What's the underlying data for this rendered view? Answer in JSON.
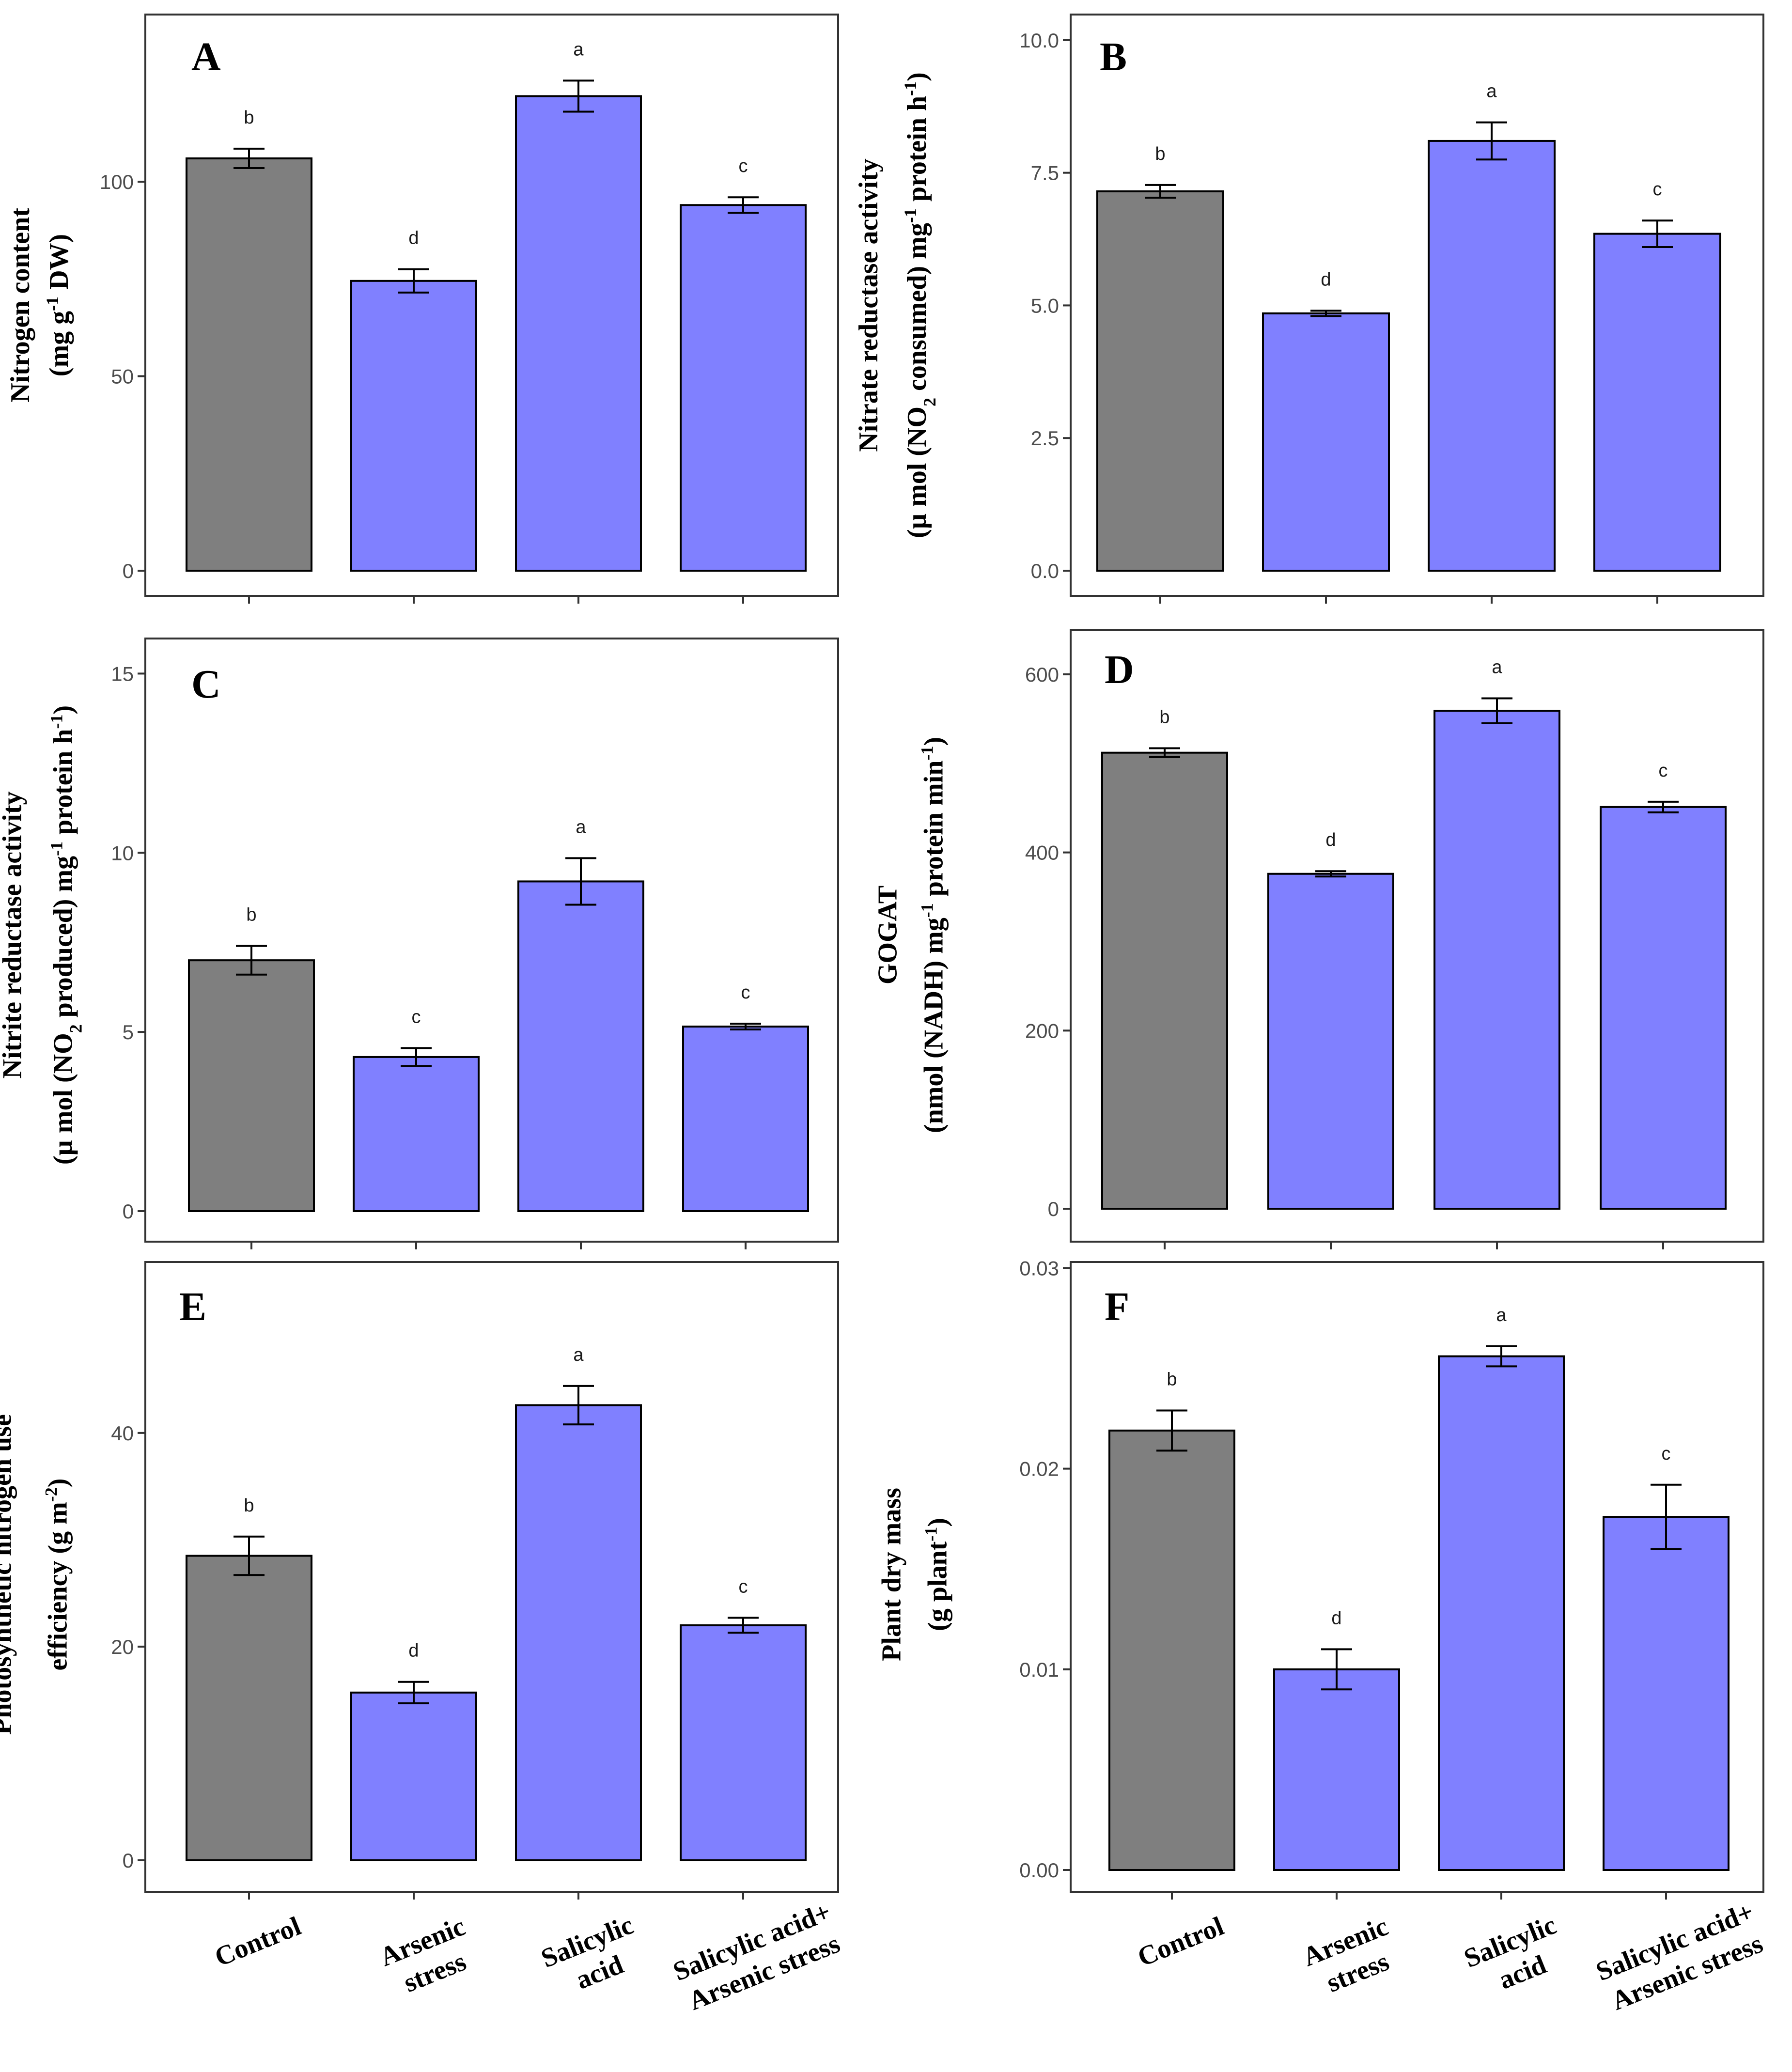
{
  "colors": {
    "control": "#7f7f7f",
    "treatment": "#8080ff"
  },
  "x_categories": [
    [
      "Control"
    ],
    [
      "Arsenic",
      "stress"
    ],
    [
      "Salicylic",
      "acid"
    ],
    [
      "Salicylic acid+",
      "Arsenic stress"
    ]
  ],
  "chart_data": [
    {
      "type": "bar",
      "panel": "A",
      "ylabel_lines": [
        [
          "Nitrogen content"
        ],
        [
          "(mg g",
          {
            "sup": "-1"
          },
          " DW)"
        ]
      ],
      "ylim": [
        0,
        137
      ],
      "yticks": [
        0,
        50,
        100
      ],
      "tick_labels": [
        "0",
        "50",
        "100"
      ],
      "values": [
        106,
        74.5,
        122,
        94
      ],
      "errors": [
        2.5,
        3,
        4,
        2
      ],
      "letters": [
        "b",
        "d",
        "a",
        "c"
      ]
    },
    {
      "type": "bar",
      "panel": "B",
      "ylabel_lines": [
        [
          "Nitrate reductase activity"
        ],
        [
          "(µ mol (NO",
          {
            "sub": "2"
          },
          " consumed) mg",
          {
            "sup": "-1"
          },
          " protein h",
          {
            "sup": "-1"
          },
          ")"
        ]
      ],
      "ylim": [
        0,
        10.3
      ],
      "yticks": [
        0,
        2.5,
        5,
        7.5,
        10
      ],
      "tick_labels": [
        "0.0",
        "2.5",
        "5.0",
        "7.5",
        "10.0"
      ],
      "values": [
        7.15,
        4.85,
        8.1,
        6.35
      ],
      "errors": [
        0.12,
        0.05,
        0.35,
        0.25
      ],
      "letters": [
        "b",
        "d",
        "a",
        "c"
      ]
    },
    {
      "type": "bar",
      "panel": "C",
      "ylabel_lines": [
        [
          "Nitrite reductase activity"
        ],
        [
          "(µ mol (NO",
          {
            "sub": "2"
          },
          " produced) mg",
          {
            "sup": "-1"
          },
          " protein h",
          {
            "sup": "-1"
          },
          ")"
        ]
      ],
      "ylim": [
        0,
        15.6
      ],
      "yticks": [
        0,
        5,
        10,
        15
      ],
      "tick_labels": [
        "0",
        "5",
        "10",
        "15"
      ],
      "values": [
        7,
        4.3,
        9.2,
        5.15
      ],
      "errors": [
        0.4,
        0.25,
        0.65,
        0.08
      ],
      "letters": [
        "b",
        "c",
        "a",
        "c"
      ]
    },
    {
      "type": "bar",
      "panel": "D",
      "ylabel_lines": [
        [
          "GOGAT"
        ],
        [
          "(nmol (NADH) mg",
          {
            "sup": "-1"
          },
          " protein min",
          {
            "sup": "-1"
          },
          ")"
        ]
      ],
      "ylim": [
        0,
        650
      ],
      "yticks": [
        0,
        200,
        400,
        600
      ],
      "tick_labels": [
        "0",
        "200",
        "400",
        "600"
      ],
      "values": [
        512,
        376,
        559,
        451
      ],
      "errors": [
        5,
        3,
        14,
        6
      ],
      "letters": [
        "b",
        "d",
        "a",
        "c"
      ]
    },
    {
      "type": "bar",
      "panel": "E",
      "ylabel_lines": [
        [
          "Photosynthetic nitrogen use"
        ],
        [
          "efficiency (g m",
          {
            "sup": "-2"
          },
          ")"
        ]
      ],
      "ylim": [
        0,
        56
      ],
      "yticks": [
        0,
        20,
        40
      ],
      "tick_labels": [
        "0",
        "20",
        "40"
      ],
      "values": [
        28.5,
        15.7,
        42.6,
        22
      ],
      "errors": [
        1.8,
        1,
        1.8,
        0.7
      ],
      "letters": [
        "b",
        "d",
        "a",
        "c"
      ]
    },
    {
      "type": "bar",
      "panel": "F",
      "ylabel_lines": [
        [
          "Plant dry mass"
        ],
        [
          "(g plant",
          {
            "sup": "-1"
          },
          ")"
        ]
      ],
      "ylim": [
        0,
        0.0303
      ],
      "yticks": [
        0,
        0.01,
        0.02,
        0.03
      ],
      "tick_labels": [
        "0.00",
        "0.01",
        "0.02",
        "0.03"
      ],
      "values": [
        0.0219,
        0.01,
        0.0256,
        0.0176
      ],
      "errors": [
        0.001,
        0.001,
        0.0005,
        0.0016
      ],
      "letters": [
        "b",
        "d",
        "a",
        "c"
      ]
    }
  ]
}
